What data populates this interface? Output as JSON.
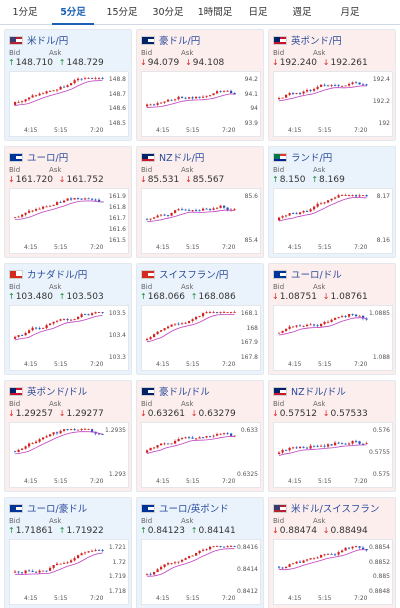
{
  "tabs": [
    {
      "label": "1分足",
      "active": false
    },
    {
      "label": "5分足",
      "active": true
    },
    {
      "label": "15分足",
      "active": false
    },
    {
      "label": "30分足",
      "active": false
    },
    {
      "label": "1時間足",
      "active": false
    },
    {
      "label": "日足",
      "active": false
    },
    {
      "label": "週足",
      "active": false
    },
    {
      "label": "月足",
      "active": false
    }
  ],
  "bid_label": "Bid",
  "ask_label": "Ask",
  "time_labels": [
    "4:15",
    "5:15",
    "7:20"
  ],
  "colors": {
    "up_bg": "#eaf3fc",
    "down_bg": "#fdeeee",
    "candle_up": "#d02020",
    "candle_down": "#2050c0",
    "ma": "#c040c0",
    "up_arrow": "#1a8a3a",
    "down_arrow": "#dd2222"
  },
  "pairs": [
    {
      "name": "米ドル/円",
      "flag": "us",
      "dir": "up",
      "bid": "148.710",
      "ask": "148.729",
      "y_ticks": [
        "148.8",
        "148.7",
        "148.6",
        "148.5"
      ]
    },
    {
      "name": "豪ドル/円",
      "flag": "au",
      "dir": "down",
      "bid": "94.079",
      "ask": "94.108",
      "y_ticks": [
        "94.2",
        "94.1",
        "94",
        "93.9"
      ]
    },
    {
      "name": "英ポンド/円",
      "flag": "gb",
      "dir": "down",
      "bid": "192.240",
      "ask": "192.261",
      "y_ticks": [
        "192.4",
        "192.2",
        "192"
      ]
    },
    {
      "name": "ユーロ/円",
      "flag": "eu",
      "dir": "down",
      "bid": "161.720",
      "ask": "161.752",
      "y_ticks": [
        "161.9",
        "161.8",
        "161.7",
        "161.6",
        "161.5"
      ]
    },
    {
      "name": "NZドル/円",
      "flag": "nz",
      "dir": "down",
      "bid": "85.531",
      "ask": "85.567",
      "y_ticks": [
        "85.6",
        "85.4"
      ]
    },
    {
      "name": "ランド/円",
      "flag": "za",
      "dir": "up",
      "bid": "8.150",
      "ask": "8.169",
      "y_ticks": [
        "8.17",
        "8.16"
      ]
    },
    {
      "name": "カナダドル/円",
      "flag": "ca",
      "dir": "up",
      "bid": "103.480",
      "ask": "103.503",
      "y_ticks": [
        "103.5",
        "103.4",
        "103.3"
      ]
    },
    {
      "name": "スイスフラン/円",
      "flag": "ch",
      "dir": "up",
      "bid": "168.066",
      "ask": "168.086",
      "y_ticks": [
        "168.1",
        "168",
        "167.9",
        "167.8"
      ]
    },
    {
      "name": "ユーロ/ドル",
      "flag": "eu",
      "dir": "down",
      "bid": "1.08751",
      "ask": "1.08761",
      "y_ticks": [
        "1.0885",
        "1.088"
      ]
    },
    {
      "name": "英ポンド/ドル",
      "flag": "gb",
      "dir": "down",
      "bid": "1.29257",
      "ask": "1.29277",
      "y_ticks": [
        "1.2935",
        "1.293"
      ]
    },
    {
      "name": "豪ドル/ドル",
      "flag": "au",
      "dir": "down",
      "bid": "0.63261",
      "ask": "0.63279",
      "y_ticks": [
        "0.633",
        "0.6325"
      ]
    },
    {
      "name": "NZドル/ドル",
      "flag": "nz",
      "dir": "down",
      "bid": "0.57512",
      "ask": "0.57533",
      "y_ticks": [
        "0.576",
        "0.5755",
        "0.575"
      ]
    },
    {
      "name": "ユーロ/豪ドル",
      "flag": "eu",
      "dir": "up",
      "bid": "1.71861",
      "ask": "1.71922",
      "y_ticks": [
        "1.721",
        "1.72",
        "1.719",
        "1.718"
      ]
    },
    {
      "name": "ユーロ/英ポンド",
      "flag": "eu",
      "dir": "up",
      "bid": "0.84123",
      "ask": "0.84141",
      "y_ticks": [
        "0.8416",
        "0.8414",
        "0.8412"
      ]
    },
    {
      "name": "米ドル/スイスフラン",
      "flag": "us",
      "dir": "down",
      "bid": "0.88474",
      "ask": "0.88494",
      "y_ticks": [
        "0.8854",
        "0.8852",
        "0.885",
        "0.8848"
      ]
    }
  ]
}
